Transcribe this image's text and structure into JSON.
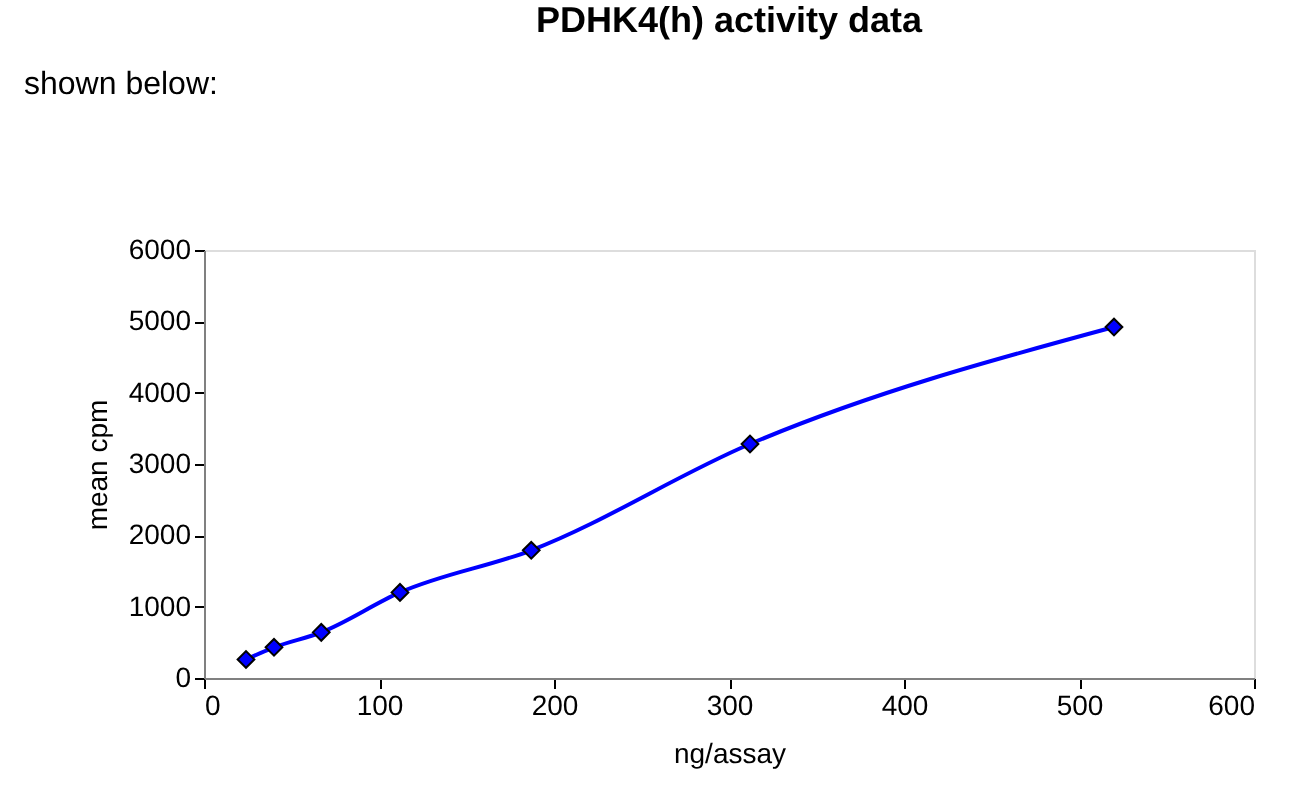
{
  "chart_data": {
    "type": "line",
    "title": "PDHK4(h) activity data",
    "xlabel": "ng/assay",
    "ylabel": "mean cpm",
    "annotations": [
      "shown below:"
    ],
    "x": [
      24,
      40,
      67,
      112,
      187,
      312,
      520
    ],
    "series": [
      {
        "color": "#0000ff",
        "values": [
          260,
          430,
          640,
          1200,
          1790,
          3280,
          4920
        ]
      }
    ],
    "xlim": [
      0,
      600
    ],
    "xticks": [
      0,
      100,
      200,
      300,
      400,
      500,
      600
    ],
    "ylim": [
      0,
      6000
    ],
    "yticks": [
      0,
      1000,
      2000,
      3000,
      4000,
      5000,
      6000
    ],
    "grid": false,
    "legend": false,
    "marker": "diamond",
    "line_style": "solid"
  }
}
